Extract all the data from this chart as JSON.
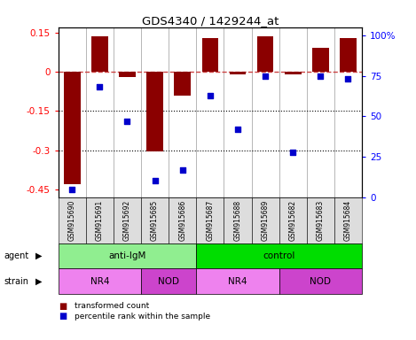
{
  "title": "GDS4340 / 1429244_at",
  "samples": [
    "GSM915690",
    "GSM915691",
    "GSM915692",
    "GSM915685",
    "GSM915686",
    "GSM915687",
    "GSM915688",
    "GSM915689",
    "GSM915682",
    "GSM915683",
    "GSM915684"
  ],
  "transformed_count": [
    -0.43,
    0.135,
    -0.02,
    -0.305,
    -0.09,
    0.13,
    -0.01,
    0.135,
    -0.01,
    0.09,
    0.13
  ],
  "percentile_rank": [
    5,
    68,
    47,
    10,
    17,
    63,
    42,
    75,
    28,
    75,
    73
  ],
  "bar_color": "#8B0000",
  "dot_color": "#0000CC",
  "dashed_line_color": "#CC4444",
  "ylim_left": [
    -0.48,
    0.17
  ],
  "yticks_left": [
    -0.45,
    -0.3,
    -0.15,
    0,
    0.15
  ],
  "ylim_right": [
    0,
    105
  ],
  "yticks_right": [
    0,
    25,
    50,
    75,
    100
  ],
  "ytick_labels_right": [
    "0",
    "25",
    "50",
    "75",
    "100%"
  ],
  "agent_groups": [
    {
      "label": "anti-IgM",
      "start": 0,
      "end": 5,
      "color": "#90EE90"
    },
    {
      "label": "control",
      "start": 5,
      "end": 11,
      "color": "#00DD00"
    }
  ],
  "strain_groups": [
    {
      "label": "NR4",
      "start": 0,
      "end": 3,
      "color": "#EE82EE"
    },
    {
      "label": "NOD",
      "start": 3,
      "end": 5,
      "color": "#CC44CC"
    },
    {
      "label": "NR4",
      "start": 5,
      "end": 8,
      "color": "#EE82EE"
    },
    {
      "label": "NOD",
      "start": 8,
      "end": 11,
      "color": "#CC44CC"
    }
  ],
  "legend_items": [
    {
      "label": "transformed count",
      "color": "#8B0000"
    },
    {
      "label": "percentile rank within the sample",
      "color": "#0000CC"
    }
  ],
  "bar_width": 0.6,
  "dot_size": 25
}
